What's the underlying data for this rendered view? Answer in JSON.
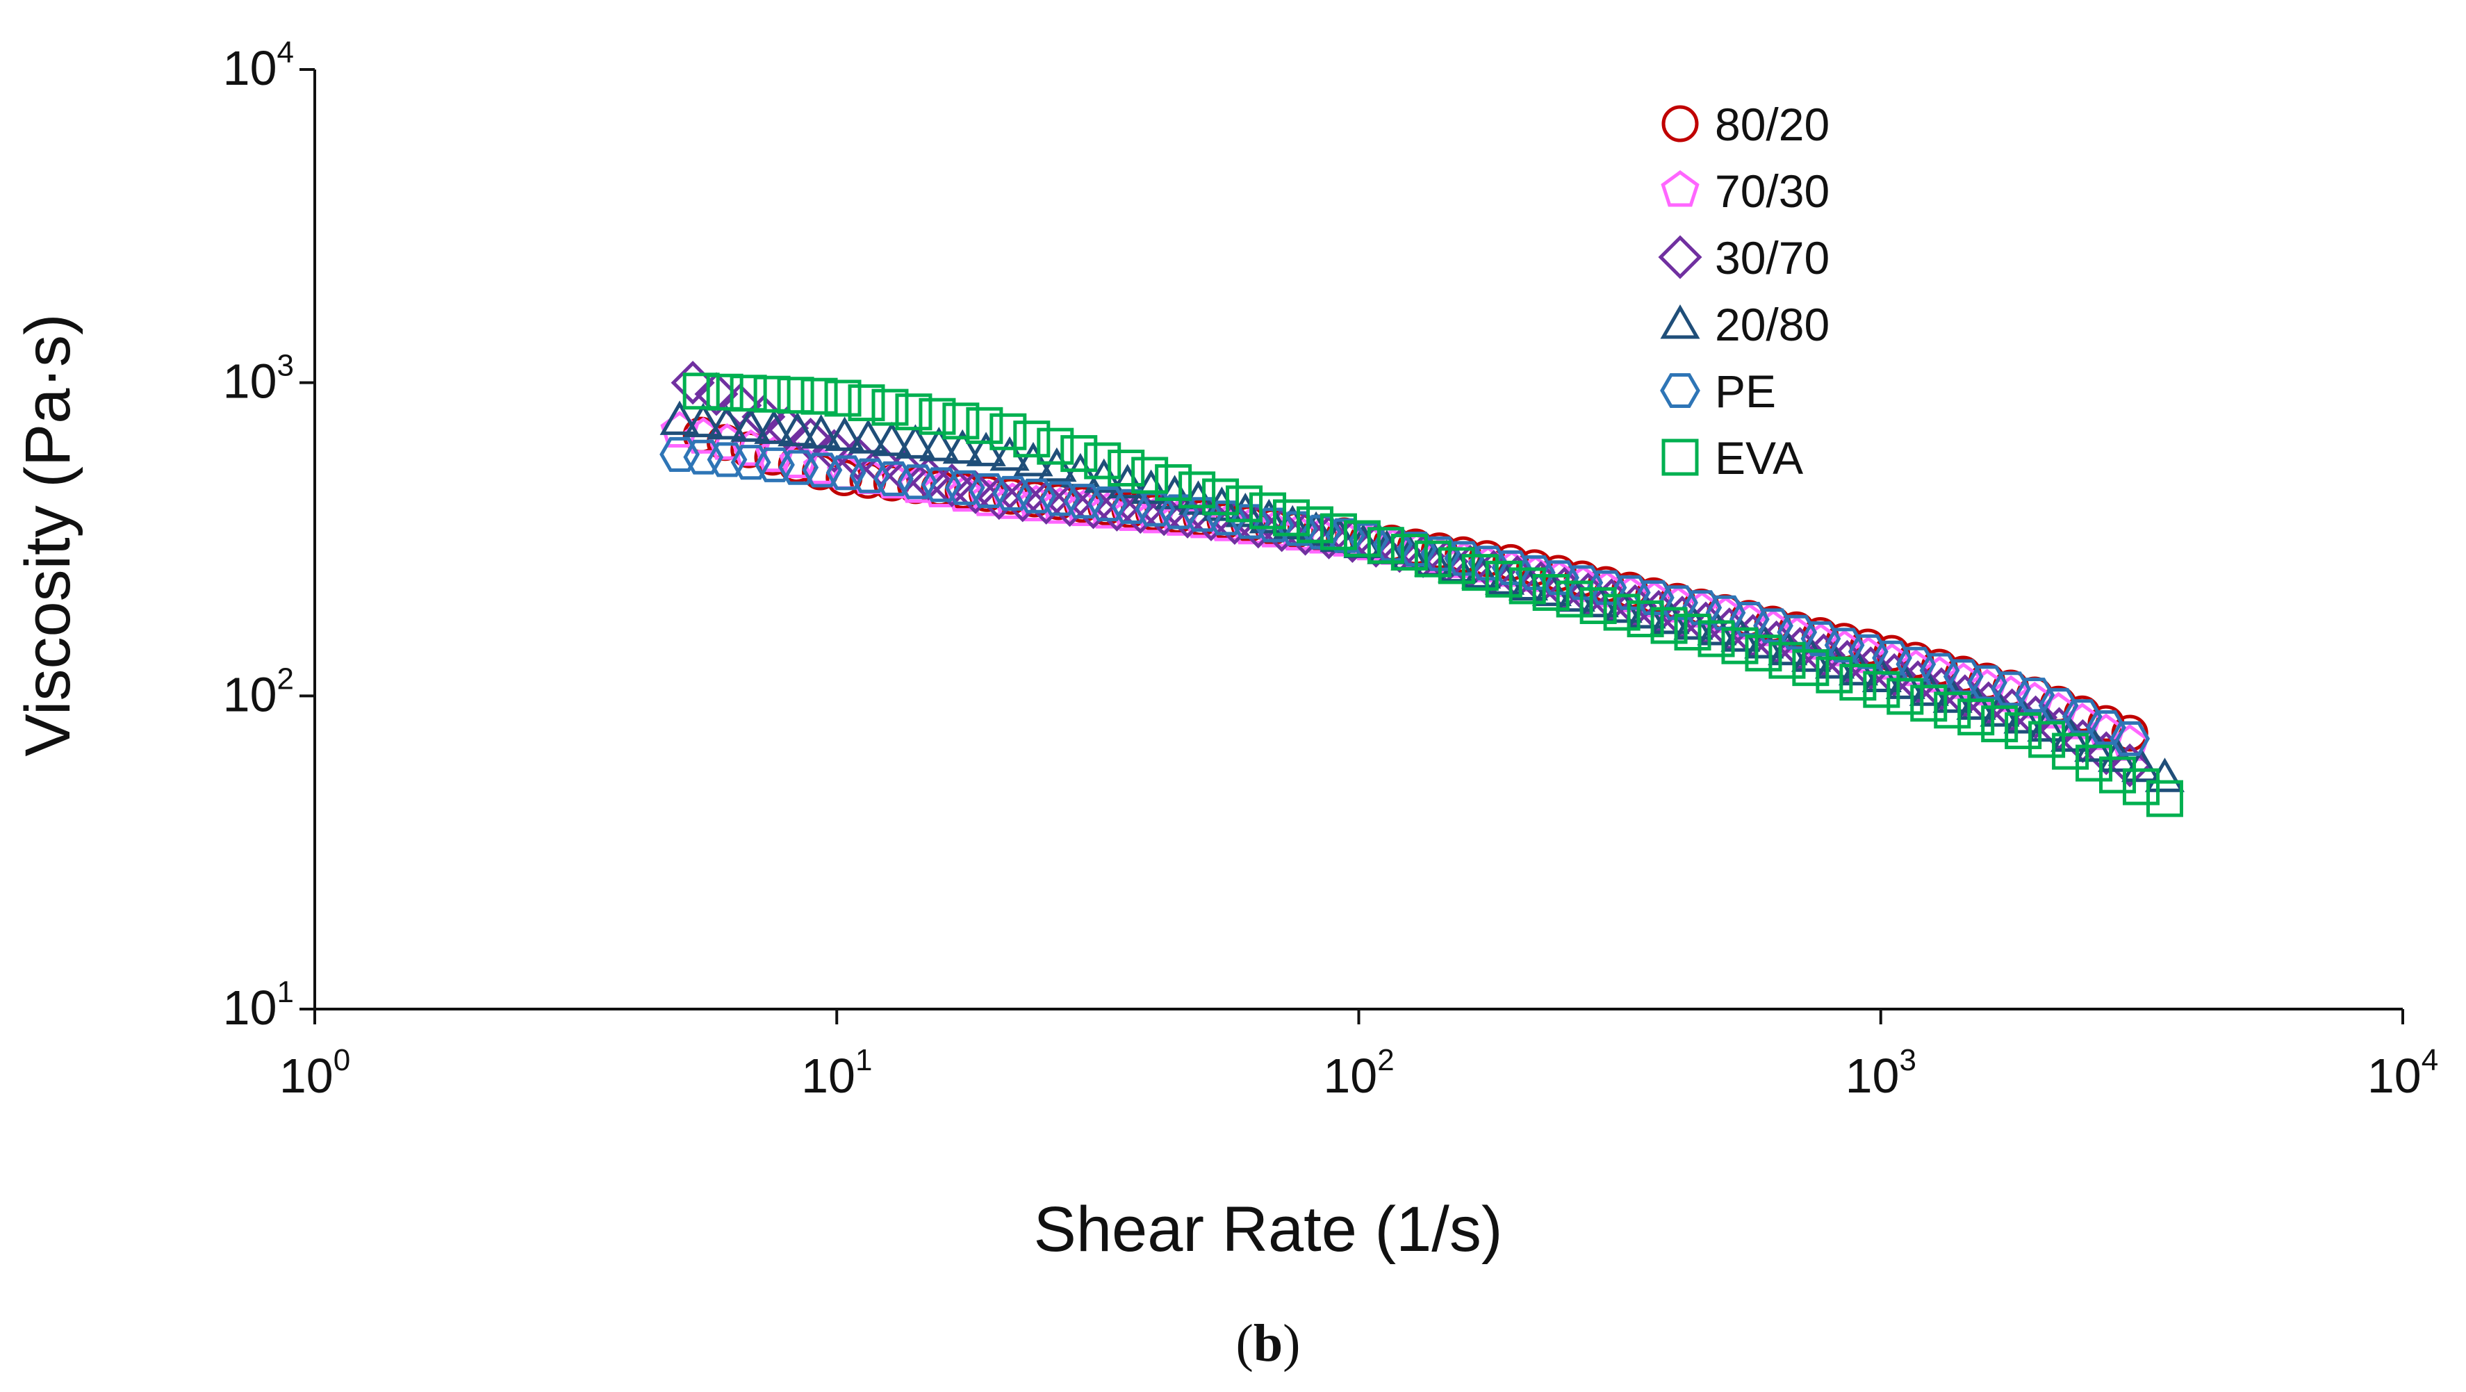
{
  "chart_data": {
    "type": "scatter",
    "title": "",
    "panel_label": {
      "open": "(",
      "letter": "b",
      "close": ")"
    },
    "xlabel": "Shear Rate (1/s)",
    "ylabel": "Viscosity (Pa·s)",
    "xscale": "log",
    "yscale": "log",
    "xlim": [
      1,
      10000
    ],
    "ylim": [
      10,
      10000
    ],
    "x_ticks": [
      {
        "base": "10",
        "exp": "0",
        "value": 1
      },
      {
        "base": "10",
        "exp": "1",
        "value": 10
      },
      {
        "base": "10",
        "exp": "2",
        "value": 100
      },
      {
        "base": "10",
        "exp": "3",
        "value": 1000
      },
      {
        "base": "10",
        "exp": "4",
        "value": 10000
      }
    ],
    "y_ticks": [
      {
        "base": "10",
        "exp": "1",
        "value": 10
      },
      {
        "base": "10",
        "exp": "2",
        "value": 100
      },
      {
        "base": "10",
        "exp": "3",
        "value": 1000
      },
      {
        "base": "10",
        "exp": "4",
        "value": 10000
      }
    ],
    "grid": false,
    "legend_position": "top-right",
    "series": [
      {
        "name": "80/20",
        "marker": "circle",
        "color": "#c00000",
        "x": [
          5.5,
          10,
          20,
          50,
          100,
          200,
          500,
          1000,
          2000,
          3000
        ],
        "y": [
          680,
          500,
          440,
          370,
          320,
          265,
          185,
          140,
          100,
          76
        ]
      },
      {
        "name": "70/30",
        "marker": "pentagon",
        "color": "#ff66ff",
        "x": [
          5,
          10,
          20,
          50,
          100,
          200,
          500,
          1000,
          2000,
          3000
        ],
        "y": [
          700,
          520,
          420,
          360,
          310,
          250,
          180,
          130,
          95,
          70
        ]
      },
      {
        "name": "30/70",
        "marker": "diamond",
        "color": "#7030a0",
        "x": [
          5.3,
          10,
          20,
          50,
          100,
          200,
          500,
          1000,
          2000,
          3000
        ],
        "y": [
          1000,
          600,
          430,
          370,
          310,
          240,
          165,
          120,
          85,
          60
        ]
      },
      {
        "name": "20/80",
        "marker": "triangle",
        "color": "#1f4e79",
        "x": [
          5,
          10,
          20,
          50,
          100,
          200,
          500,
          1000,
          2000,
          3500
        ],
        "y": [
          760,
          680,
          600,
          420,
          310,
          230,
          160,
          115,
          82,
          55
        ]
      },
      {
        "name": "PE",
        "marker": "hexagon",
        "color": "#2e75b6",
        "x": [
          5,
          10,
          20,
          50,
          100,
          200,
          500,
          1000,
          2000,
          3000
        ],
        "y": [
          590,
          520,
          450,
          380,
          320,
          255,
          185,
          135,
          100,
          73
        ]
      },
      {
        "name": "EVA",
        "marker": "square",
        "color": "#00b050",
        "x": [
          5.5,
          10,
          20,
          50,
          100,
          200,
          500,
          1000,
          2000,
          3500
        ],
        "y": [
          940,
          900,
          720,
          450,
          320,
          230,
          150,
          105,
          75,
          47
        ]
      }
    ]
  }
}
